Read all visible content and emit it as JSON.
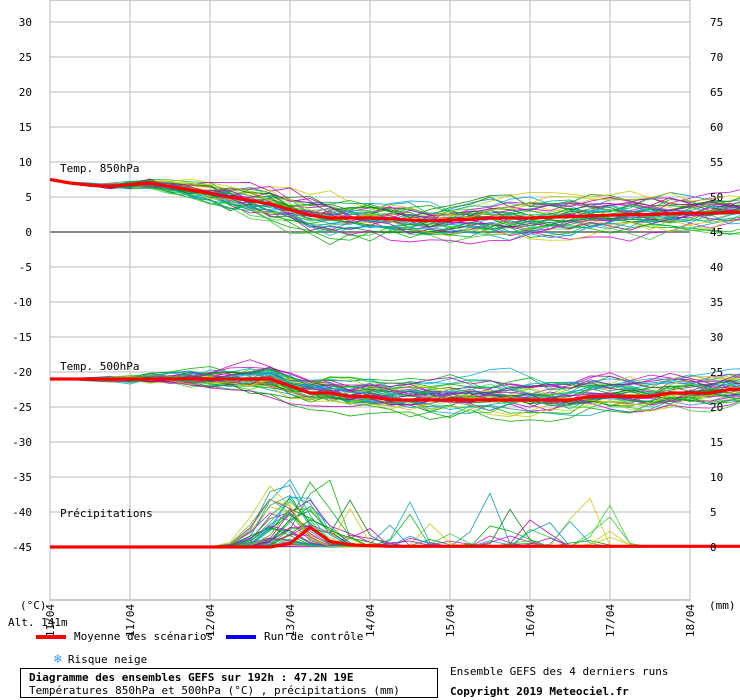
{
  "chart_data": {
    "type": "line",
    "title": "Diagramme des ensembles GEFS sur 192h : 47.2N 19E",
    "subtitle": "Températures 850hPa et 500hPa (°C) , précipitations (mm)",
    "left_axis_unit": "(°C)",
    "right_axis_unit": "(mm)",
    "altitude_label": "Alt. 141m",
    "left_ticks": [
      30,
      25,
      20,
      15,
      10,
      5,
      0,
      -5,
      -10,
      -15,
      -20,
      -25,
      -30,
      -35,
      -40,
      -45
    ],
    "right_ticks": [
      75,
      70,
      65,
      60,
      55,
      50,
      45,
      40,
      35,
      30,
      25,
      20,
      15,
      10,
      5,
      0
    ],
    "x_ticks": [
      "11/04",
      "11/04",
      "12/04",
      "13/04",
      "14/04",
      "15/04",
      "16/04",
      "17/04",
      "18/04"
    ],
    "x_range_hours": [
      0,
      192
    ],
    "left_range": [
      -45,
      30
    ],
    "section_labels": {
      "t850": "Temp. 850hPa",
      "t500": "Temp. 500hPa",
      "precip": "Précipitations"
    },
    "series": [
      {
        "name": "Moyenne des scénarios",
        "color": "#ff0000",
        "step_hours": 6,
        "t850": [
          7.5,
          7.0,
          6.7,
          6.5,
          6.8,
          7.0,
          6.5,
          6.0,
          5.5,
          5.0,
          4.5,
          4.0,
          3.2,
          2.4,
          2.0,
          2.0,
          2.0,
          1.9,
          1.7,
          1.6,
          1.7,
          1.8,
          2.0,
          2.0,
          2.0,
          2.1,
          2.2,
          2.3,
          2.4,
          2.5,
          2.5,
          2.6,
          2.7,
          2.7,
          2.8,
          2.9
        ],
        "t500": [
          -21.0,
          -21.0,
          -21.0,
          -21.0,
          -21.0,
          -21.0,
          -21.0,
          -21.0,
          -21.0,
          -21.0,
          -21.0,
          -21.0,
          -22.0,
          -23.0,
          -23.0,
          -23.5,
          -23.5,
          -24.0,
          -24.0,
          -24.0,
          -24.0,
          -24.0,
          -24.0,
          -24.0,
          -24.0,
          -24.0,
          -24.0,
          -23.5,
          -23.5,
          -23.5,
          -23.5,
          -23.0,
          -23.0,
          -23.0,
          -22.5,
          -22.5
        ],
        "precip": [
          0.0,
          0.0,
          0.0,
          0.0,
          0.0,
          0.0,
          0.0,
          0.0,
          0.0,
          0.0,
          0.0,
          0.0,
          0.5,
          2.8,
          0.8,
          0.3,
          0.2,
          0.1,
          0.1,
          0.1,
          0.1,
          0.1,
          0.1,
          0.1,
          0.1,
          0.1,
          0.1,
          0.1,
          0.1,
          0.1,
          0.1,
          0.1,
          0.1,
          0.1,
          0.1,
          0.1
        ]
      },
      {
        "name": "Run de contrôle",
        "color": "#0000ff"
      }
    ],
    "member_colors": [
      "#00b000",
      "#b000b0",
      "#00aacc",
      "#c8c800",
      "#008800",
      "#d000d0",
      "#33cc33",
      "#0099aa"
    ],
    "member_count": 44,
    "grid": true
  },
  "legend": {
    "mean_label": "Moyenne des scénarios",
    "control_label": "Run de contrôle",
    "snow_label": "Risque neige"
  },
  "footer": {
    "ensemble_note": "Ensemble GEFS des 4 derniers runs",
    "copyright": "Copyright 2019 Meteociel.fr"
  }
}
